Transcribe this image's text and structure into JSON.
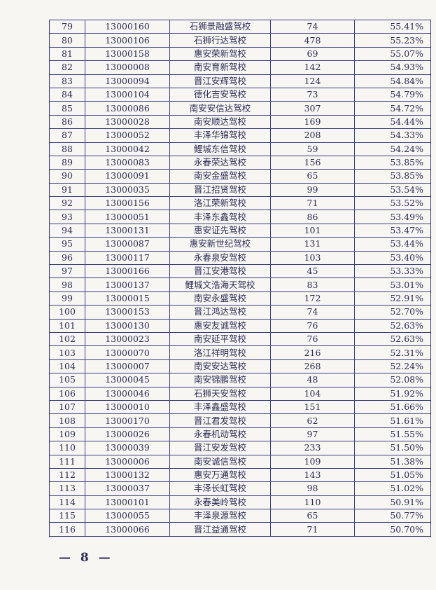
{
  "table": {
    "rows": [
      [
        "79",
        "13000160",
        "石狮景融盛驾校",
        "74",
        "55.41%"
      ],
      [
        "80",
        "13000106",
        "石狮行达驾校",
        "478",
        "55.23%"
      ],
      [
        "81",
        "13000158",
        "惠安荣新驾校",
        "69",
        "55.07%"
      ],
      [
        "82",
        "13000008",
        "南安育新驾校",
        "142",
        "54.93%"
      ],
      [
        "83",
        "13000094",
        "晋江安辉驾校",
        "124",
        "54.84%"
      ],
      [
        "84",
        "13000104",
        "德化吉安驾校",
        "73",
        "54.79%"
      ],
      [
        "85",
        "13000086",
        "南安安信达驾校",
        "307",
        "54.72%"
      ],
      [
        "86",
        "13000028",
        "南安顺达驾校",
        "169",
        "54.44%"
      ],
      [
        "87",
        "13000052",
        "丰泽华锦驾校",
        "208",
        "54.33%"
      ],
      [
        "88",
        "13000042",
        "鲤城东信驾校",
        "59",
        "54.24%"
      ],
      [
        "89",
        "13000083",
        "永春荣达驾校",
        "156",
        "53.85%"
      ],
      [
        "90",
        "13000091",
        "南安金盛驾校",
        "65",
        "53.85%"
      ],
      [
        "91",
        "13000035",
        "晋江招贤驾校",
        "99",
        "53.54%"
      ],
      [
        "92",
        "13000156",
        "洛江荣新驾校",
        "71",
        "53.52%"
      ],
      [
        "93",
        "13000051",
        "丰泽东鑫驾校",
        "86",
        "53.49%"
      ],
      [
        "94",
        "13000131",
        "惠安证先驾校",
        "101",
        "53.47%"
      ],
      [
        "95",
        "13000087",
        "惠安新世纪驾校",
        "131",
        "53.44%"
      ],
      [
        "96",
        "13000117",
        "永春泉安驾校",
        "103",
        "53.40%"
      ],
      [
        "97",
        "13000166",
        "晋江安港驾校",
        "45",
        "53.33%"
      ],
      [
        "98",
        "13000137",
        "鲤城文浩海天驾校",
        "83",
        "53.01%"
      ],
      [
        "99",
        "13000015",
        "南安永盛驾校",
        "172",
        "52.91%"
      ],
      [
        "100",
        "13000153",
        "晋江鸿达驾校",
        "74",
        "52.70%"
      ],
      [
        "101",
        "13000130",
        "惠安友诚驾校",
        "76",
        "52.63%"
      ],
      [
        "102",
        "13000023",
        "南安延平驾校",
        "76",
        "52.63%"
      ],
      [
        "103",
        "13000070",
        "洛江祥明驾校",
        "216",
        "52.31%"
      ],
      [
        "104",
        "13000007",
        "南安安达驾校",
        "268",
        "52.24%"
      ],
      [
        "105",
        "13000045",
        "南安锦鹏驾校",
        "48",
        "52.08%"
      ],
      [
        "106",
        "13000046",
        "石狮天安驾校",
        "104",
        "51.92%"
      ],
      [
        "107",
        "13000010",
        "丰泽鑫盛驾校",
        "151",
        "51.66%"
      ],
      [
        "108",
        "13000170",
        "晋江君发驾校",
        "62",
        "51.61%"
      ],
      [
        "109",
        "13000026",
        "永春机动驾校",
        "97",
        "51.55%"
      ],
      [
        "110",
        "13000039",
        "晋江安发驾校",
        "233",
        "51.50%"
      ],
      [
        "111",
        "13000006",
        "南安诚信驾校",
        "109",
        "51.38%"
      ],
      [
        "112",
        "13000132",
        "惠安万通驾校",
        "143",
        "51.05%"
      ],
      [
        "113",
        "13000037",
        "丰泽长虹驾校",
        "98",
        "51.02%"
      ],
      [
        "114",
        "13000101",
        "永春美岭驾校",
        "110",
        "50.91%"
      ],
      [
        "115",
        "13000055",
        "丰泽泉源驾校",
        "65",
        "50.77%"
      ],
      [
        "116",
        "13000066",
        "晋江益通驾校",
        "71",
        "50.70%"
      ]
    ]
  },
  "footer": {
    "page_number": "— 8 —"
  }
}
